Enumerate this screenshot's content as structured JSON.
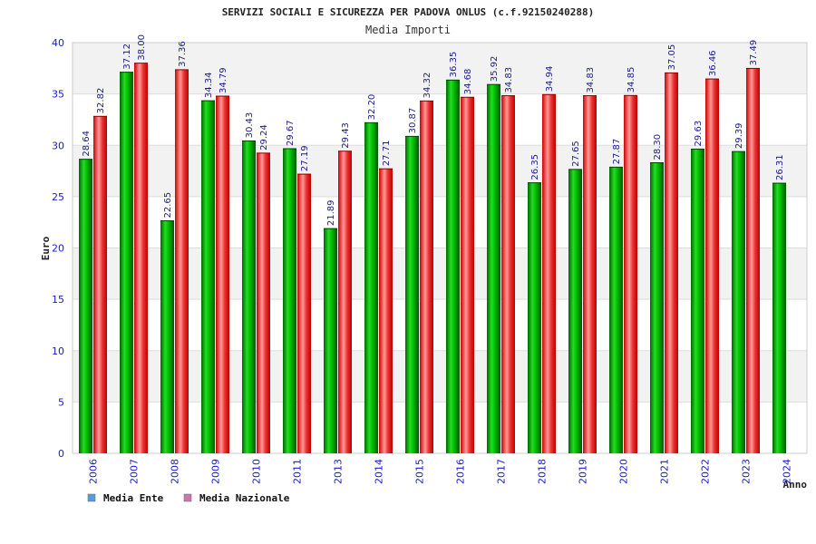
{
  "chart_data": {
    "type": "bar",
    "title": "SERVIZI SOCIALI E SICUREZZA PER PADOVA ONLUS (c.f.92150240288)",
    "subtitle": "Media Importi",
    "ylabel": "Euro",
    "xlabel": "Anno",
    "ylim": [
      0,
      40
    ],
    "yticks": [
      0,
      5,
      10,
      15,
      20,
      25,
      30,
      35,
      40
    ],
    "grid": true,
    "legend_position": "bottom-left",
    "categories": [
      "2006",
      "2007",
      "2008",
      "2009",
      "2010",
      "2011",
      "2013",
      "2014",
      "2015",
      "2016",
      "2017",
      "2018",
      "2019",
      "2020",
      "2021",
      "2022",
      "2023",
      "2024"
    ],
    "series": [
      {
        "name": "Media Ente",
        "color": "#00aa00",
        "legend_color": "#5b9bd5",
        "values": [
          28.64,
          37.12,
          22.65,
          34.34,
          30.43,
          29.67,
          21.89,
          32.2,
          30.87,
          36.35,
          35.92,
          26.35,
          27.65,
          27.87,
          28.3,
          29.63,
          29.39,
          26.31
        ],
        "labels": [
          "28.64",
          "37.12",
          "22.65",
          "34.34",
          "30.43",
          "29.67",
          "21.89",
          "32.20",
          "30.87",
          "36.35",
          "35.92",
          "26.35",
          "27.65",
          "27.87",
          "28.30",
          "29.63",
          "29.39",
          "26.31"
        ]
      },
      {
        "name": "Media Nazionale",
        "color": "#ee1111",
        "legend_color": "#cc77aa",
        "values": [
          32.82,
          38.0,
          37.36,
          34.79,
          29.24,
          27.19,
          29.43,
          27.71,
          34.32,
          34.68,
          34.83,
          34.94,
          34.83,
          34.85,
          37.05,
          36.46,
          37.49,
          null
        ],
        "labels": [
          "32.82",
          "38.00",
          "37.36",
          "34.79",
          "29.24",
          "27.19",
          "29.43",
          "27.71",
          "34.32",
          "34.68",
          "34.83",
          "34.94",
          "34.83",
          "34.85",
          "37.05",
          "36.46",
          "37.49",
          null
        ]
      }
    ]
  }
}
